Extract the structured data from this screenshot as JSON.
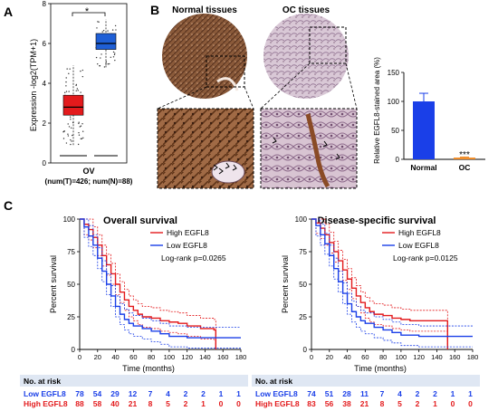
{
  "panels": {
    "a_letter": "A",
    "b_letter": "B",
    "c_letter": "C"
  },
  "panel_a": {
    "ylabel": "Expression -log2(TPM+1)",
    "significance": "*",
    "xgroup": "OV",
    "counts": "(num(T)=426; num(N)=88)",
    "colors": {
      "tumor": "#e31a1c",
      "normal": "#1f5fd6"
    }
  },
  "panel_b": {
    "normal_title": "Normal tissues",
    "oc_title": "OC tissues"
  },
  "chart_data": [
    {
      "type": "box",
      "panel": "A",
      "ylabel": "Expression -log2(TPM+1)",
      "ylim": [
        0,
        8
      ],
      "yticks": [
        0,
        2,
        4,
        6,
        8
      ],
      "series": [
        {
          "name": "T",
          "n": 426,
          "q1": 2.4,
          "median": 2.8,
          "q3": 3.4,
          "whisker_low": 0.9,
          "whisker_high": 4.9,
          "color": "#e31a1c"
        },
        {
          "name": "N",
          "n": 88,
          "q1": 5.7,
          "median": 6.0,
          "q3": 6.5,
          "whisker_low": 4.8,
          "whisker_high": 7.2,
          "color": "#1f5fd6"
        }
      ]
    },
    {
      "type": "bar",
      "panel": "B",
      "categories": [
        "Normal",
        "OC"
      ],
      "values": [
        100,
        3
      ],
      "errors": [
        14,
        1
      ],
      "colors": [
        "#1a3fe8",
        "#f08a24"
      ],
      "ylabel": "Relative EGFL8-stained area (%)",
      "ylim": [
        0,
        150
      ],
      "yticks": [
        0,
        50,
        100,
        150
      ],
      "annotation": "***"
    },
    {
      "type": "line",
      "panel": "C-left",
      "title": "Overall survival",
      "xlabel": "Time (months)",
      "ylabel": "Percent survival",
      "xlim": [
        0,
        180
      ],
      "ylim": [
        0,
        100
      ],
      "xticks": [
        0,
        20,
        40,
        60,
        80,
        100,
        120,
        140,
        160,
        180
      ],
      "yticks": [
        0,
        25,
        50,
        75,
        100
      ],
      "legend": [
        "High EGFL8",
        "Low EGFL8"
      ],
      "annotation": "Log-rank p=0.0265",
      "series": [
        {
          "name": "High EGFL8",
          "color": "#e31a1c",
          "x": [
            0,
            5,
            10,
            15,
            20,
            25,
            30,
            35,
            40,
            45,
            50,
            55,
            60,
            65,
            70,
            80,
            90,
            100,
            110,
            120,
            135,
            150,
            152
          ],
          "y": [
            100,
            96,
            92,
            86,
            80,
            72,
            65,
            58,
            50,
            44,
            38,
            33,
            30,
            27,
            25,
            24,
            22,
            21,
            20,
            18,
            16,
            15,
            0
          ]
        },
        {
          "name": "Low EGFL8",
          "color": "#1a3fe8",
          "x": [
            0,
            5,
            10,
            15,
            20,
            25,
            30,
            35,
            40,
            45,
            50,
            55,
            60,
            70,
            80,
            90,
            100,
            110,
            120,
            140,
            160,
            180
          ],
          "y": [
            100,
            94,
            87,
            80,
            70,
            60,
            50,
            41,
            33,
            27,
            23,
            20,
            18,
            16,
            14,
            12,
            10,
            10,
            9,
            9,
            9,
            9
          ]
        }
      ],
      "risk_table": {
        "title": "No. at risk",
        "rows": [
          {
            "label": "Low EGFL8",
            "values": [
              "78",
              "54",
              "29",
              "12",
              "7",
              "4",
              "2",
              "2",
              "1",
              "1"
            ]
          },
          {
            "label": "High EGFL8",
            "values": [
              "88",
              "58",
              "40",
              "21",
              "8",
              "5",
              "2",
              "1",
              "0",
              "0"
            ]
          }
        ]
      }
    },
    {
      "type": "line",
      "panel": "C-right",
      "title": "Disease-specific survival",
      "xlabel": "Time (months)",
      "ylabel": "Percent survival",
      "xlim": [
        0,
        180
      ],
      "ylim": [
        0,
        100
      ],
      "xticks": [
        0,
        20,
        40,
        60,
        80,
        100,
        120,
        140,
        160,
        180
      ],
      "yticks": [
        0,
        25,
        50,
        75,
        100
      ],
      "legend": [
        "High EGFL8",
        "Low EGFL8"
      ],
      "annotation": "Log-rank p=0.0125",
      "series": [
        {
          "name": "High EGFL8",
          "color": "#e31a1c",
          "x": [
            0,
            5,
            10,
            15,
            20,
            25,
            30,
            35,
            40,
            45,
            50,
            55,
            60,
            65,
            70,
            80,
            90,
            100,
            110,
            120,
            135,
            150,
            152
          ],
          "y": [
            100,
            97,
            93,
            88,
            82,
            75,
            68,
            61,
            54,
            47,
            41,
            36,
            32,
            29,
            27,
            26,
            24,
            23,
            22,
            22,
            22,
            22,
            0
          ]
        },
        {
          "name": "Low EGFL8",
          "color": "#1a3fe8",
          "x": [
            0,
            5,
            10,
            15,
            20,
            25,
            30,
            35,
            40,
            45,
            50,
            55,
            60,
            70,
            80,
            90,
            100,
            110,
            120,
            140,
            160,
            180
          ],
          "y": [
            100,
            95,
            88,
            81,
            72,
            62,
            52,
            43,
            35,
            29,
            25,
            22,
            20,
            17,
            15,
            13,
            11,
            11,
            10,
            10,
            10,
            10
          ]
        }
      ],
      "risk_table": {
        "title": "No. at risk",
        "rows": [
          {
            "label": "Low EGFL8",
            "values": [
              "74",
              "51",
              "28",
              "11",
              "7",
              "4",
              "2",
              "2",
              "1",
              "1"
            ]
          },
          {
            "label": "High EGFL8",
            "values": [
              "83",
              "56",
              "38",
              "21",
              "8",
              "5",
              "2",
              "1",
              "0",
              "0"
            ]
          }
        ]
      }
    }
  ]
}
